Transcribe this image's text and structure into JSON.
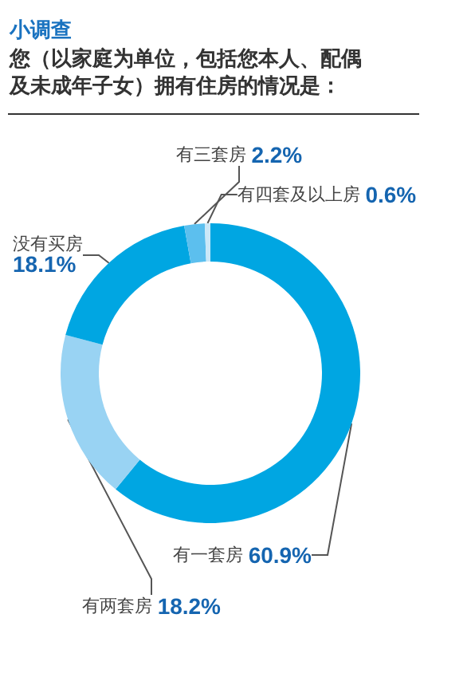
{
  "chart_data": {
    "type": "donut",
    "title": "小调查",
    "subtitle": "您（以家庭为单位，包括您本人、配偶及未成年子女）拥有住房的情况是：",
    "categories": [
      "有一套房",
      "有两套房",
      "没有买房",
      "有三套房",
      "有四套及以上房"
    ],
    "values": [
      60.9,
      18.2,
      18.1,
      2.2,
      0.6
    ],
    "value_labels": [
      "60.9%",
      "18.2%",
      "18.1%",
      "2.2%",
      "0.6%"
    ],
    "colors": [
      "#00a6e2",
      "#99d3f3",
      "#00a6e2",
      "#5cbfee",
      "#cbe8f8"
    ]
  }
}
